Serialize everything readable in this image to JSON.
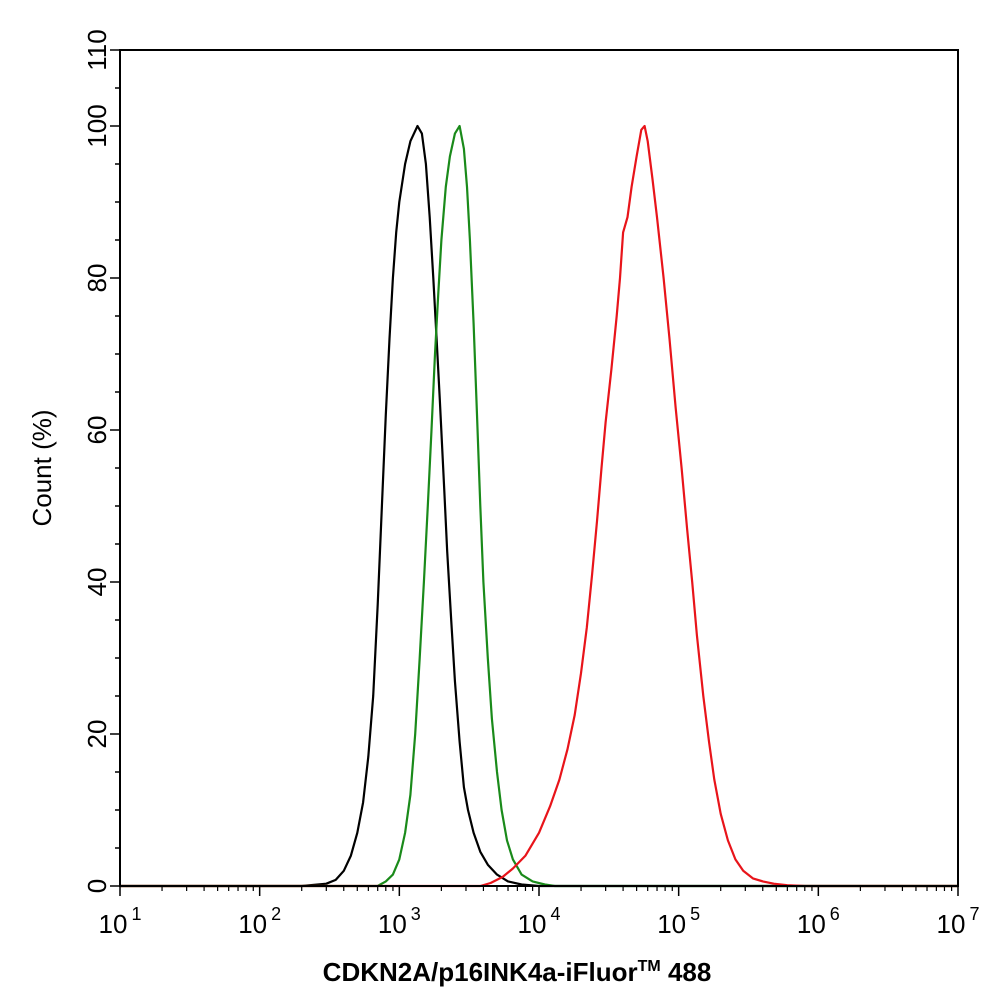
{
  "chart_data": {
    "type": "line",
    "xlabel": "CDKN2A/p16INK4a-iFluor",
    "xlabel_superscript": "TM",
    "xlabel_suffix": " 488",
    "ylabel": "Count  (%)",
    "x_scale": "log",
    "xlim": [
      10,
      10000000
    ],
    "ylim": [
      0,
      110
    ],
    "grid": false,
    "x_ticks": [
      {
        "base": "10",
        "exp": "1",
        "value": 10
      },
      {
        "base": "10",
        "exp": "2",
        "value": 100
      },
      {
        "base": "10",
        "exp": "3",
        "value": 1000
      },
      {
        "base": "10",
        "exp": "4",
        "value": 10000
      },
      {
        "base": "10",
        "exp": "5",
        "value": 100000
      },
      {
        "base": "10",
        "exp": "6",
        "value": 1000000
      },
      {
        "base": "10",
        "exp": "7",
        "value": 10000000
      }
    ],
    "y_ticks": [
      {
        "label": "0",
        "value": 0
      },
      {
        "label": "20",
        "value": 20
      },
      {
        "label": "40",
        "value": 40
      },
      {
        "label": "60",
        "value": 60
      },
      {
        "label": "80",
        "value": 80
      },
      {
        "label": "100",
        "value": 100
      },
      {
        "label": "110",
        "value": 110
      }
    ],
    "series": [
      {
        "color": "#000000",
        "points": [
          [
            10,
            0
          ],
          [
            200,
            0
          ],
          [
            300,
            0.3
          ],
          [
            350,
            0.8
          ],
          [
            400,
            2
          ],
          [
            450,
            4
          ],
          [
            500,
            7
          ],
          [
            550,
            11
          ],
          [
            600,
            17
          ],
          [
            650,
            25
          ],
          [
            700,
            37
          ],
          [
            750,
            50
          ],
          [
            800,
            62
          ],
          [
            850,
            72
          ],
          [
            900,
            80
          ],
          [
            950,
            86
          ],
          [
            1000,
            90
          ],
          [
            1100,
            95
          ],
          [
            1200,
            98
          ],
          [
            1350,
            100
          ],
          [
            1450,
            99
          ],
          [
            1550,
            95
          ],
          [
            1650,
            88
          ],
          [
            1750,
            80
          ],
          [
            1850,
            72
          ],
          [
            1950,
            64
          ],
          [
            2100,
            52
          ],
          [
            2200,
            44
          ],
          [
            2350,
            35
          ],
          [
            2500,
            27
          ],
          [
            2700,
            19
          ],
          [
            2900,
            13
          ],
          [
            3100,
            10
          ],
          [
            3400,
            7
          ],
          [
            3800,
            4.5
          ],
          [
            4300,
            2.8
          ],
          [
            5000,
            1.5
          ],
          [
            6000,
            0.6
          ],
          [
            7500,
            0.2
          ],
          [
            10000,
            0
          ],
          [
            10000000,
            0
          ]
        ]
      },
      {
        "color": "#1a8a1a",
        "points": [
          [
            10,
            0
          ],
          [
            700,
            0
          ],
          [
            800,
            0.6
          ],
          [
            900,
            1.5
          ],
          [
            1000,
            3.5
          ],
          [
            1100,
            7
          ],
          [
            1200,
            12
          ],
          [
            1300,
            20
          ],
          [
            1400,
            30
          ],
          [
            1500,
            40
          ],
          [
            1600,
            50
          ],
          [
            1700,
            60
          ],
          [
            1800,
            70
          ],
          [
            1900,
            78
          ],
          [
            2000,
            85
          ],
          [
            2150,
            92
          ],
          [
            2300,
            96
          ],
          [
            2500,
            99
          ],
          [
            2700,
            100
          ],
          [
            2900,
            97
          ],
          [
            3050,
            92
          ],
          [
            3200,
            85
          ],
          [
            3400,
            74
          ],
          [
            3600,
            62
          ],
          [
            3800,
            50
          ],
          [
            4000,
            40
          ],
          [
            4300,
            30
          ],
          [
            4600,
            22
          ],
          [
            5000,
            15
          ],
          [
            5400,
            10
          ],
          [
            5900,
            6
          ],
          [
            6500,
            3.5
          ],
          [
            7500,
            1.5
          ],
          [
            9000,
            0.6
          ],
          [
            11000,
            0.2
          ],
          [
            13000,
            0
          ],
          [
            10000000,
            0
          ]
        ]
      },
      {
        "color": "#e8141a",
        "points": [
          [
            10,
            0
          ],
          [
            3800,
            0
          ],
          [
            4500,
            0.4
          ],
          [
            5500,
            1.2
          ],
          [
            6500,
            2.3
          ],
          [
            8000,
            4
          ],
          [
            10000,
            7
          ],
          [
            12000,
            10.5
          ],
          [
            14000,
            14
          ],
          [
            16000,
            18
          ],
          [
            18000,
            22.5
          ],
          [
            20000,
            28
          ],
          [
            22000,
            34
          ],
          [
            24000,
            41
          ],
          [
            26000,
            48
          ],
          [
            28000,
            55
          ],
          [
            30000,
            61
          ],
          [
            33000,
            68
          ],
          [
            36000,
            75
          ],
          [
            38000,
            80
          ],
          [
            40000,
            86
          ],
          [
            43000,
            88
          ],
          [
            46000,
            92
          ],
          [
            50000,
            96
          ],
          [
            54000,
            99.5
          ],
          [
            57000,
            100
          ],
          [
            60000,
            98
          ],
          [
            65000,
            93
          ],
          [
            70000,
            88
          ],
          [
            78000,
            80
          ],
          [
            86000,
            72
          ],
          [
            95000,
            63
          ],
          [
            105000,
            55
          ],
          [
            115000,
            47
          ],
          [
            125000,
            40
          ],
          [
            135000,
            33
          ],
          [
            150000,
            25
          ],
          [
            165000,
            19
          ],
          [
            180000,
            14
          ],
          [
            200000,
            9.5
          ],
          [
            225000,
            6
          ],
          [
            255000,
            3.5
          ],
          [
            290000,
            2
          ],
          [
            340000,
            1
          ],
          [
            400000,
            0.6
          ],
          [
            480000,
            0.3
          ],
          [
            600000,
            0.1
          ],
          [
            800000,
            0
          ],
          [
            10000000,
            0
          ]
        ]
      }
    ]
  }
}
